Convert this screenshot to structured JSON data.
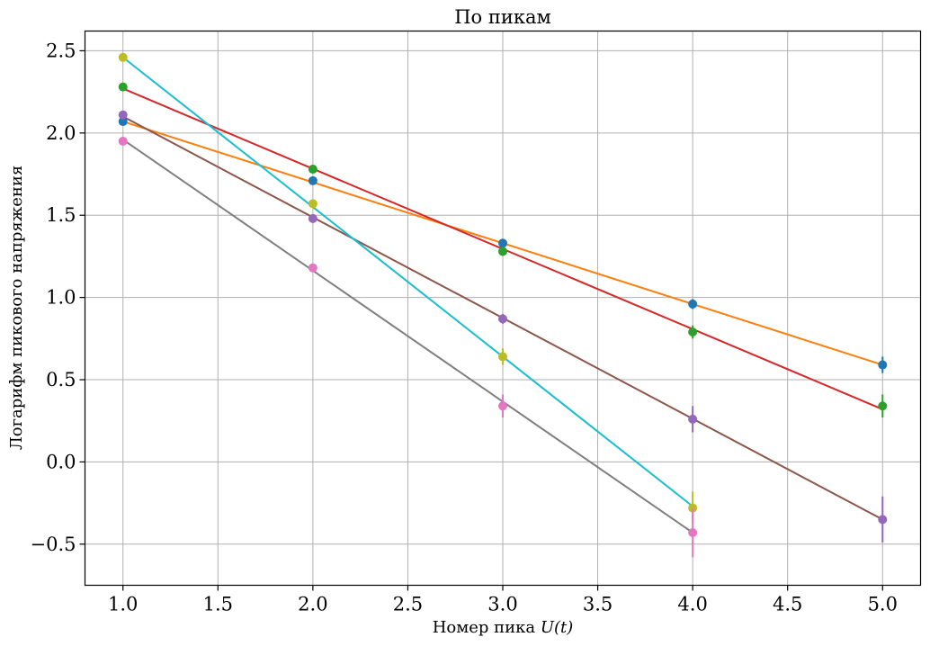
{
  "chart_data": {
    "type": "scatter",
    "title": "По пикам",
    "xlabel_text": "Номер пика ",
    "xlabel_math": "U(t)",
    "ylabel": "Логарифм пикового напряжения",
    "xlim": [
      0.8,
      5.2
    ],
    "ylim": [
      -0.75,
      2.62
    ],
    "grid": true,
    "xticks": [
      1.0,
      1.5,
      2.0,
      2.5,
      3.0,
      3.5,
      4.0,
      4.5,
      5.0
    ],
    "xtick_labels": [
      "1.0",
      "1.5",
      "2.0",
      "2.5",
      "3.0",
      "3.5",
      "4.0",
      "4.5",
      "5.0"
    ],
    "yticks": [
      2.5,
      2.0,
      1.5,
      1.0,
      0.5,
      0.0,
      -0.5
    ],
    "ytick_labels": [
      "2.5",
      "2.0",
      "1.5",
      "1.0",
      "0.5",
      "0.0",
      "−0.5"
    ],
    "points": [
      {
        "color": "#1f77b4",
        "x": [
          1,
          2,
          3,
          4,
          5
        ],
        "y": [
          2.07,
          1.71,
          1.33,
          0.96,
          0.59
        ],
        "err": [
          0.02,
          0.02,
          0.02,
          0.03,
          0.05
        ]
      },
      {
        "color": "#2ca02c",
        "x": [
          1,
          2,
          3,
          4,
          5
        ],
        "y": [
          2.28,
          1.78,
          1.28,
          0.79,
          0.34
        ],
        "err": [
          0.02,
          0.02,
          0.02,
          0.04,
          0.07
        ]
      },
      {
        "color": "#9467bd",
        "x": [
          1,
          2,
          3,
          4,
          5
        ],
        "y": [
          2.11,
          1.48,
          0.87,
          0.26,
          -0.35
        ],
        "err": [
          0.02,
          0.02,
          0.03,
          0.08,
          0.14
        ]
      },
      {
        "color": "#bcbd22",
        "x": [
          1,
          2,
          3,
          4
        ],
        "y": [
          2.46,
          1.57,
          0.64,
          -0.28
        ],
        "err": [
          0.02,
          0.02,
          0.05,
          0.1
        ]
      },
      {
        "color": "#e377c2",
        "x": [
          1,
          2,
          3,
          4
        ],
        "y": [
          1.95,
          1.18,
          0.34,
          -0.43
        ],
        "err": [
          0.02,
          0.02,
          0.07,
          0.15
        ]
      }
    ],
    "fits": [
      {
        "color": "#ff7f0e",
        "x": [
          1,
          5
        ],
        "y": [
          2.07,
          0.59
        ]
      },
      {
        "color": "#d62728",
        "x": [
          1,
          5
        ],
        "y": [
          2.27,
          0.32
        ]
      },
      {
        "color": "#8c564b",
        "x": [
          1,
          5
        ],
        "y": [
          2.1,
          -0.35
        ]
      },
      {
        "color": "#17becf",
        "x": [
          1,
          4
        ],
        "y": [
          2.46,
          -0.27
        ]
      },
      {
        "color": "#7f7f7f",
        "x": [
          1,
          4
        ],
        "y": [
          1.96,
          -0.43
        ]
      }
    ]
  }
}
